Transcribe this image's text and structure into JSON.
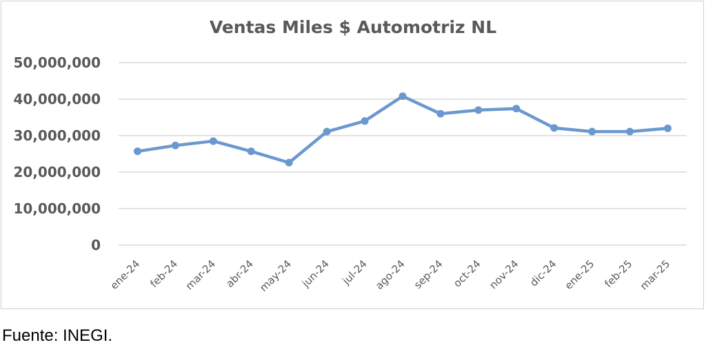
{
  "chart_data": {
    "type": "line",
    "title": "Ventas Miles $ Automotriz NL",
    "xlabel": "",
    "ylabel": "",
    "categories": [
      "ene-24",
      "feb-24",
      "mar-24",
      "abr-24",
      "may-24",
      "jun-24",
      "jul-24",
      "ago-24",
      "sep-24",
      "oct-24",
      "nov-24",
      "dic-24",
      "ene-25",
      "feb-25",
      "mar-25"
    ],
    "series": [
      {
        "values": [
          25700000,
          27300000,
          28500000,
          25700000,
          22600000,
          31100000,
          34000000,
          40800000,
          36000000,
          37000000,
          37400000,
          32100000,
          31100000,
          31100000,
          32000000
        ]
      }
    ],
    "ylim": [
      0,
      50000000
    ],
    "yticks": [
      0,
      10000000,
      20000000,
      30000000,
      40000000,
      50000000
    ],
    "ytick_labels": [
      "0",
      "10,000,000",
      "20,000,000",
      "30,000,000",
      "40,000,000",
      "50,000,000"
    ],
    "grid": true,
    "legend": "none",
    "colors": {
      "line": "#6a98cf",
      "grid": "#d9d9d9",
      "text": "#595959"
    }
  },
  "source_note": "Fuente: INEGI."
}
